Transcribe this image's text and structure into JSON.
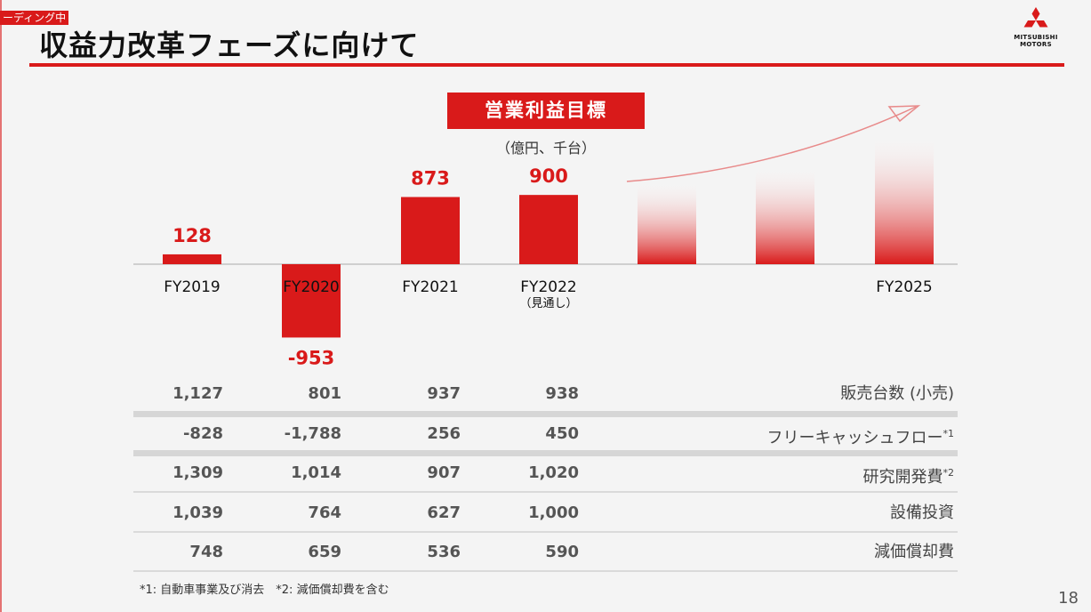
{
  "overlay": {
    "text": "ーディング中"
  },
  "header": {
    "title": "収益力改革フェーズに向けて"
  },
  "logo": {
    "line1": "MITSUBISHI",
    "line2": "MOTORS",
    "color": "#d91a1a"
  },
  "target": {
    "label": "営業利益目標",
    "unit": "（億円、千台）"
  },
  "chart_data": {
    "type": "bar",
    "title": "営業利益目標",
    "categories": [
      "FY2019",
      "FY2020",
      "FY2021",
      "FY2022",
      "",
      "",
      "FY2025"
    ],
    "category_sublabels": [
      "",
      "",
      "",
      "（見通し）",
      "",
      "",
      ""
    ],
    "values": [
      128,
      -953,
      873,
      900,
      null,
      null,
      null
    ],
    "value_labels": [
      "128",
      "-953",
      "873",
      "900",
      "",
      "",
      ""
    ],
    "projected_bars": 3,
    "trend_arrow": "upward",
    "bar_color": "#d91a1a"
  },
  "table": {
    "rows": [
      {
        "label": "販売台数 (小売)",
        "sup": "",
        "values": [
          "1,127",
          "801",
          "937",
          "938"
        ]
      },
      {
        "label": "フリーキャッシュフロー",
        "sup": "*1",
        "values": [
          "-828",
          "-1,788",
          "256",
          "450"
        ]
      },
      {
        "label": "研究開発費",
        "sup": "*2",
        "values": [
          "1,309",
          "1,014",
          "907",
          "1,020"
        ]
      },
      {
        "label": "設備投資",
        "sup": "",
        "values": [
          "1,039",
          "764",
          "627",
          "1,000"
        ]
      },
      {
        "label": "減価償却費",
        "sup": "",
        "values": [
          "748",
          "659",
          "536",
          "590"
        ]
      }
    ]
  },
  "footnote": "*1: 自動車事業及び消去　*2: 減価償却費を含む",
  "page": {
    "number": "18"
  }
}
